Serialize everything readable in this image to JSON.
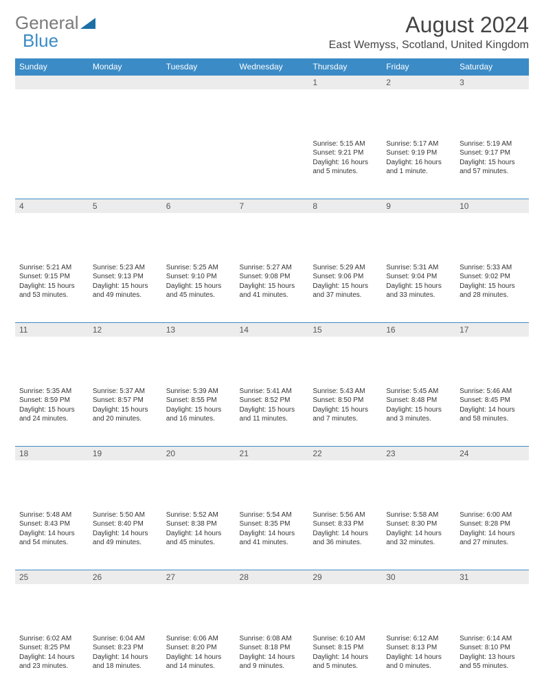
{
  "brand": {
    "part1": "General",
    "part2": "Blue"
  },
  "title": "August 2024",
  "location": "East Wemyss, Scotland, United Kingdom",
  "colors": {
    "header_bg": "#3b8bc6",
    "header_text": "#ffffff",
    "daynum_bg": "#ececec",
    "row_border": "#3b8bc6",
    "brand_gray": "#7a7a7a",
    "brand_blue": "#3b8bc6"
  },
  "weekdays": [
    "Sunday",
    "Monday",
    "Tuesday",
    "Wednesday",
    "Thursday",
    "Friday",
    "Saturday"
  ],
  "weeks": [
    [
      {
        "n": "",
        "sr": "",
        "ss": "",
        "dl": ""
      },
      {
        "n": "",
        "sr": "",
        "ss": "",
        "dl": ""
      },
      {
        "n": "",
        "sr": "",
        "ss": "",
        "dl": ""
      },
      {
        "n": "",
        "sr": "",
        "ss": "",
        "dl": ""
      },
      {
        "n": "1",
        "sr": "Sunrise: 5:15 AM",
        "ss": "Sunset: 9:21 PM",
        "dl": "Daylight: 16 hours and 5 minutes."
      },
      {
        "n": "2",
        "sr": "Sunrise: 5:17 AM",
        "ss": "Sunset: 9:19 PM",
        "dl": "Daylight: 16 hours and 1 minute."
      },
      {
        "n": "3",
        "sr": "Sunrise: 5:19 AM",
        "ss": "Sunset: 9:17 PM",
        "dl": "Daylight: 15 hours and 57 minutes."
      }
    ],
    [
      {
        "n": "4",
        "sr": "Sunrise: 5:21 AM",
        "ss": "Sunset: 9:15 PM",
        "dl": "Daylight: 15 hours and 53 minutes."
      },
      {
        "n": "5",
        "sr": "Sunrise: 5:23 AM",
        "ss": "Sunset: 9:13 PM",
        "dl": "Daylight: 15 hours and 49 minutes."
      },
      {
        "n": "6",
        "sr": "Sunrise: 5:25 AM",
        "ss": "Sunset: 9:10 PM",
        "dl": "Daylight: 15 hours and 45 minutes."
      },
      {
        "n": "7",
        "sr": "Sunrise: 5:27 AM",
        "ss": "Sunset: 9:08 PM",
        "dl": "Daylight: 15 hours and 41 minutes."
      },
      {
        "n": "8",
        "sr": "Sunrise: 5:29 AM",
        "ss": "Sunset: 9:06 PM",
        "dl": "Daylight: 15 hours and 37 minutes."
      },
      {
        "n": "9",
        "sr": "Sunrise: 5:31 AM",
        "ss": "Sunset: 9:04 PM",
        "dl": "Daylight: 15 hours and 33 minutes."
      },
      {
        "n": "10",
        "sr": "Sunrise: 5:33 AM",
        "ss": "Sunset: 9:02 PM",
        "dl": "Daylight: 15 hours and 28 minutes."
      }
    ],
    [
      {
        "n": "11",
        "sr": "Sunrise: 5:35 AM",
        "ss": "Sunset: 8:59 PM",
        "dl": "Daylight: 15 hours and 24 minutes."
      },
      {
        "n": "12",
        "sr": "Sunrise: 5:37 AM",
        "ss": "Sunset: 8:57 PM",
        "dl": "Daylight: 15 hours and 20 minutes."
      },
      {
        "n": "13",
        "sr": "Sunrise: 5:39 AM",
        "ss": "Sunset: 8:55 PM",
        "dl": "Daylight: 15 hours and 16 minutes."
      },
      {
        "n": "14",
        "sr": "Sunrise: 5:41 AM",
        "ss": "Sunset: 8:52 PM",
        "dl": "Daylight: 15 hours and 11 minutes."
      },
      {
        "n": "15",
        "sr": "Sunrise: 5:43 AM",
        "ss": "Sunset: 8:50 PM",
        "dl": "Daylight: 15 hours and 7 minutes."
      },
      {
        "n": "16",
        "sr": "Sunrise: 5:45 AM",
        "ss": "Sunset: 8:48 PM",
        "dl": "Daylight: 15 hours and 3 minutes."
      },
      {
        "n": "17",
        "sr": "Sunrise: 5:46 AM",
        "ss": "Sunset: 8:45 PM",
        "dl": "Daylight: 14 hours and 58 minutes."
      }
    ],
    [
      {
        "n": "18",
        "sr": "Sunrise: 5:48 AM",
        "ss": "Sunset: 8:43 PM",
        "dl": "Daylight: 14 hours and 54 minutes."
      },
      {
        "n": "19",
        "sr": "Sunrise: 5:50 AM",
        "ss": "Sunset: 8:40 PM",
        "dl": "Daylight: 14 hours and 49 minutes."
      },
      {
        "n": "20",
        "sr": "Sunrise: 5:52 AM",
        "ss": "Sunset: 8:38 PM",
        "dl": "Daylight: 14 hours and 45 minutes."
      },
      {
        "n": "21",
        "sr": "Sunrise: 5:54 AM",
        "ss": "Sunset: 8:35 PM",
        "dl": "Daylight: 14 hours and 41 minutes."
      },
      {
        "n": "22",
        "sr": "Sunrise: 5:56 AM",
        "ss": "Sunset: 8:33 PM",
        "dl": "Daylight: 14 hours and 36 minutes."
      },
      {
        "n": "23",
        "sr": "Sunrise: 5:58 AM",
        "ss": "Sunset: 8:30 PM",
        "dl": "Daylight: 14 hours and 32 minutes."
      },
      {
        "n": "24",
        "sr": "Sunrise: 6:00 AM",
        "ss": "Sunset: 8:28 PM",
        "dl": "Daylight: 14 hours and 27 minutes."
      }
    ],
    [
      {
        "n": "25",
        "sr": "Sunrise: 6:02 AM",
        "ss": "Sunset: 8:25 PM",
        "dl": "Daylight: 14 hours and 23 minutes."
      },
      {
        "n": "26",
        "sr": "Sunrise: 6:04 AM",
        "ss": "Sunset: 8:23 PM",
        "dl": "Daylight: 14 hours and 18 minutes."
      },
      {
        "n": "27",
        "sr": "Sunrise: 6:06 AM",
        "ss": "Sunset: 8:20 PM",
        "dl": "Daylight: 14 hours and 14 minutes."
      },
      {
        "n": "28",
        "sr": "Sunrise: 6:08 AM",
        "ss": "Sunset: 8:18 PM",
        "dl": "Daylight: 14 hours and 9 minutes."
      },
      {
        "n": "29",
        "sr": "Sunrise: 6:10 AM",
        "ss": "Sunset: 8:15 PM",
        "dl": "Daylight: 14 hours and 5 minutes."
      },
      {
        "n": "30",
        "sr": "Sunrise: 6:12 AM",
        "ss": "Sunset: 8:13 PM",
        "dl": "Daylight: 14 hours and 0 minutes."
      },
      {
        "n": "31",
        "sr": "Sunrise: 6:14 AM",
        "ss": "Sunset: 8:10 PM",
        "dl": "Daylight: 13 hours and 55 minutes."
      }
    ]
  ]
}
